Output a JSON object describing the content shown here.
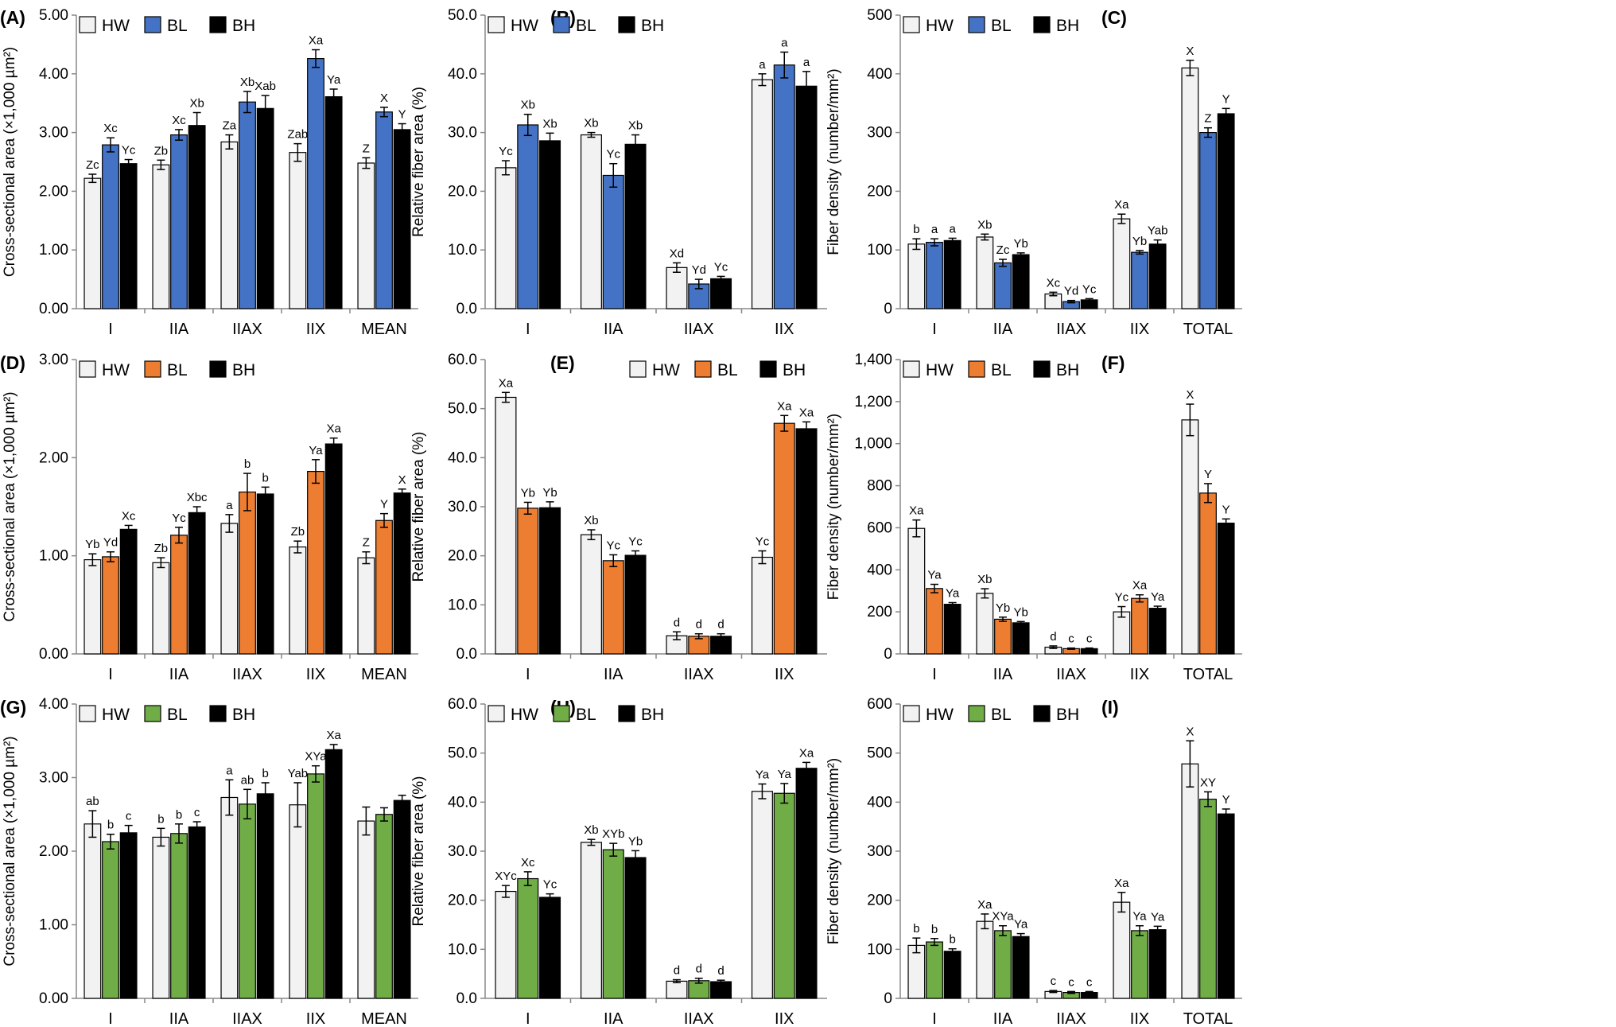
{
  "legend_labels": [
    "HW",
    "BL",
    "BH"
  ],
  "colors": {
    "hw": "#f2f2f2",
    "bh": "#000000",
    "blue": "#4472c4",
    "orange": "#ed7d31",
    "green": "#70ad47",
    "outline": "#000000"
  },
  "chart_data": [
    {
      "type": "bar",
      "panel": "(A)",
      "ylabel": "Cross-sectional area (×1,000 µm²)",
      "categories": [
        "I",
        "IIA",
        "IIAX",
        "IIX",
        "MEAN"
      ],
      "ylim": [
        0,
        5
      ],
      "yticks": [
        "0.00",
        "1.00",
        "2.00",
        "3.00",
        "4.00",
        "5.00"
      ],
      "bl_color": "blue",
      "legend": "top-left",
      "series": [
        {
          "name": "HW",
          "values": [
            2.22,
            2.45,
            2.84,
            2.66,
            2.48
          ],
          "errors": [
            0.07,
            0.08,
            0.12,
            0.15,
            0.09
          ],
          "labels": [
            "Zc",
            "Zb",
            "Za",
            "Zab",
            "Z"
          ]
        },
        {
          "name": "BL",
          "values": [
            2.79,
            2.96,
            3.52,
            4.26,
            3.35
          ],
          "errors": [
            0.12,
            0.09,
            0.18,
            0.15,
            0.08
          ],
          "labels": [
            "Xc",
            "Xc",
            "Xb",
            "Xa",
            "X"
          ]
        },
        {
          "name": "BH",
          "values": [
            2.47,
            3.12,
            3.41,
            3.61,
            3.05
          ],
          "errors": [
            0.07,
            0.22,
            0.22,
            0.13,
            0.1
          ],
          "labels": [
            "Yc",
            "Xb",
            "Xab",
            "Ya",
            "Y"
          ]
        }
      ]
    },
    {
      "type": "bar",
      "panel": "(B)",
      "ylabel": "Relative fiber area (%)",
      "categories": [
        "I",
        "IIA",
        "IIAX",
        "IIX"
      ],
      "ylim": [
        0,
        50
      ],
      "yticks": [
        "0.0",
        "10.0",
        "20.0",
        "30.0",
        "40.0",
        "50.0"
      ],
      "bl_color": "blue",
      "legend": "top-left",
      "series": [
        {
          "name": "HW",
          "values": [
            24.0,
            29.6,
            7.0,
            39.0
          ],
          "errors": [
            1.2,
            0.4,
            0.8,
            1.0
          ],
          "labels": [
            "Yc",
            "Xb",
            "Xd",
            "a"
          ]
        },
        {
          "name": "BL",
          "values": [
            31.3,
            22.7,
            4.2,
            41.5
          ],
          "errors": [
            1.8,
            2.0,
            0.8,
            2.2
          ],
          "labels": [
            "Xb",
            "Yc",
            "Yd",
            "a"
          ]
        },
        {
          "name": "BH",
          "values": [
            28.6,
            28.0,
            5.1,
            37.9
          ],
          "errors": [
            1.3,
            1.6,
            0.4,
            2.5
          ],
          "labels": [
            "Xb",
            "Xb",
            "Yc",
            "a"
          ]
        }
      ]
    },
    {
      "type": "bar",
      "panel": "(C)",
      "ylabel": "Fiber density (number/mm²)",
      "categories": [
        "I",
        "IIA",
        "IIAX",
        "IIX",
        "TOTAL"
      ],
      "ylim": [
        0,
        500
      ],
      "yticks": [
        "0",
        "100",
        "200",
        "300",
        "400",
        "500"
      ],
      "bl_color": "blue",
      "legend": "top-left",
      "series": [
        {
          "name": "HW",
          "values": [
            110,
            122,
            25,
            153,
            410
          ],
          "errors": [
            9,
            5,
            3,
            8,
            13
          ],
          "labels": [
            "b",
            "Xb",
            "Xc",
            "Xa",
            "X"
          ]
        },
        {
          "name": "BL",
          "values": [
            113,
            78,
            12,
            96,
            300
          ],
          "errors": [
            6,
            6,
            2,
            3,
            8
          ],
          "labels": [
            "a",
            "Zc",
            "Yd",
            "Yb",
            "Z"
          ]
        },
        {
          "name": "BH",
          "values": [
            116,
            92,
            15,
            110,
            332
          ],
          "errors": [
            4,
            3,
            2,
            7,
            9
          ],
          "labels": [
            "a",
            "Yb",
            "Yc",
            "Yab",
            "Y"
          ]
        }
      ]
    },
    {
      "type": "bar",
      "panel": "(D)",
      "ylabel": "Cross-sectional area (×1,000 µm²)",
      "categories": [
        "I",
        "IIA",
        "IIAX",
        "IIX",
        "MEAN"
      ],
      "ylim": [
        0,
        3
      ],
      "yticks": [
        "0.00",
        "1.00",
        "2.00",
        "3.00"
      ],
      "bl_color": "orange",
      "legend": "top-left",
      "series": [
        {
          "name": "HW",
          "values": [
            0.96,
            0.93,
            1.33,
            1.09,
            0.98
          ],
          "errors": [
            0.06,
            0.05,
            0.09,
            0.06,
            0.06
          ],
          "labels": [
            "Yb",
            "Zb",
            "a",
            "Zb",
            "Z"
          ]
        },
        {
          "name": "BL",
          "values": [
            0.99,
            1.21,
            1.65,
            1.86,
            1.36
          ],
          "errors": [
            0.05,
            0.08,
            0.19,
            0.12,
            0.07
          ],
          "labels": [
            "Yd",
            "Yc",
            "b",
            "Ya",
            "Y"
          ]
        },
        {
          "name": "BH",
          "values": [
            1.27,
            1.44,
            1.63,
            2.14,
            1.64
          ],
          "errors": [
            0.04,
            0.06,
            0.07,
            0.06,
            0.04
          ],
          "labels": [
            "Xc",
            "Xbc",
            "b",
            "Xa",
            "X"
          ]
        }
      ]
    },
    {
      "type": "bar",
      "panel": "(E)",
      "ylabel": "Relative fiber area (%)",
      "categories": [
        "I",
        "IIA",
        "IIAX",
        "IIX"
      ],
      "ylim": [
        0,
        60
      ],
      "yticks": [
        "0.0",
        "10.0",
        "20.0",
        "30.0",
        "40.0",
        "50.0",
        "60.0"
      ],
      "bl_color": "orange",
      "legend": "top-right",
      "series": [
        {
          "name": "HW",
          "values": [
            52.3,
            24.3,
            3.7,
            19.7
          ],
          "errors": [
            1.0,
            1.0,
            0.8,
            1.3
          ],
          "labels": [
            "Xa",
            "Xb",
            "d",
            "Yc"
          ]
        },
        {
          "name": "BL",
          "values": [
            29.7,
            19.0,
            3.6,
            47.0
          ],
          "errors": [
            1.2,
            1.2,
            0.5,
            1.6
          ],
          "labels": [
            "Yb",
            "Yc",
            "d",
            "Xa"
          ]
        },
        {
          "name": "BH",
          "values": [
            29.8,
            20.1,
            3.6,
            45.9
          ],
          "errors": [
            1.2,
            0.9,
            0.5,
            1.4
          ],
          "labels": [
            "Yb",
            "Yc",
            "d",
            "Xa"
          ]
        }
      ]
    },
    {
      "type": "bar",
      "panel": "(F)",
      "ylabel": "Fiber density (number/mm²)",
      "categories": [
        "I",
        "IIA",
        "IIAX",
        "IIX",
        "TOTAL"
      ],
      "ylim": [
        0,
        1400
      ],
      "yticks": [
        "0",
        "200",
        "400",
        "600",
        "800",
        "1,000",
        "1,200",
        "1,400"
      ],
      "bl_color": "orange",
      "legend": "top-left",
      "series": [
        {
          "name": "HW",
          "values": [
            597,
            288,
            32,
            200,
            1113
          ],
          "errors": [
            40,
            22,
            6,
            25,
            75
          ],
          "labels": [
            "Xa",
            "Xb",
            "d",
            "Yc",
            "X"
          ]
        },
        {
          "name": "BL",
          "values": [
            311,
            165,
            25,
            264,
            765
          ],
          "errors": [
            20,
            10,
            3,
            17,
            45
          ],
          "labels": [
            "Ya",
            "Yb",
            "c",
            "Xa",
            "Y"
          ]
        },
        {
          "name": "BH",
          "values": [
            236,
            148,
            25,
            217,
            622
          ],
          "errors": [
            8,
            6,
            3,
            10,
            20
          ],
          "labels": [
            "Ya",
            "Yb",
            "c",
            "Ya",
            "Y"
          ]
        }
      ]
    },
    {
      "type": "bar",
      "panel": "(G)",
      "ylabel": "Cross-sectional area (×1,000 µm²)",
      "categories": [
        "I",
        "IIA",
        "IIAX",
        "IIX",
        "MEAN"
      ],
      "ylim": [
        0,
        4
      ],
      "yticks": [
        "0.00",
        "1.00",
        "2.00",
        "3.00",
        "4.00"
      ],
      "bl_color": "green",
      "legend": "top-left",
      "series": [
        {
          "name": "HW",
          "values": [
            2.37,
            2.19,
            2.73,
            2.63,
            2.41
          ],
          "errors": [
            0.18,
            0.12,
            0.24,
            0.3,
            0.19
          ],
          "labels": [
            "ab",
            "b",
            "a",
            "Yab",
            ""
          ]
        },
        {
          "name": "BL",
          "values": [
            2.13,
            2.24,
            2.64,
            3.05,
            2.5
          ],
          "errors": [
            0.1,
            0.13,
            0.2,
            0.11,
            0.09
          ],
          "labels": [
            "b",
            "b",
            "ab",
            "XYa",
            ""
          ]
        },
        {
          "name": "BH",
          "values": [
            2.25,
            2.33,
            2.78,
            3.38,
            2.69
          ],
          "errors": [
            0.1,
            0.07,
            0.15,
            0.07,
            0.07
          ],
          "labels": [
            "c",
            "c",
            "b",
            "Xa",
            ""
          ]
        }
      ]
    },
    {
      "type": "bar",
      "panel": "(H)",
      "ylabel": "Relative fiber area (%)",
      "categories": [
        "I",
        "IIA",
        "IIAX",
        "IIX"
      ],
      "ylim": [
        0,
        60
      ],
      "yticks": [
        "0.0",
        "10.0",
        "20.0",
        "30.0",
        "40.0",
        "50.0",
        "60.0"
      ],
      "bl_color": "green",
      "legend": "top-left",
      "series": [
        {
          "name": "HW",
          "values": [
            21.8,
            31.8,
            3.5,
            42.2
          ],
          "errors": [
            1.2,
            0.6,
            0.3,
            1.5
          ],
          "labels": [
            "XYc",
            "Xb",
            "d",
            "Ya"
          ]
        },
        {
          "name": "BL",
          "values": [
            24.4,
            30.3,
            3.6,
            41.8
          ],
          "errors": [
            1.4,
            1.3,
            0.5,
            2.0
          ],
          "labels": [
            "Xc",
            "XYb",
            "d",
            "Ya"
          ]
        },
        {
          "name": "BH",
          "values": [
            20.6,
            28.7,
            3.4,
            46.9
          ],
          "errors": [
            0.7,
            1.4,
            0.3,
            1.2
          ],
          "labels": [
            "Yc",
            "Yb",
            "d",
            "Xa"
          ]
        }
      ]
    },
    {
      "type": "bar",
      "panel": "(I)",
      "ylabel": "Fiber density (number/mm²)",
      "categories": [
        "I",
        "IIA",
        "IIAX",
        "IIX",
        "TOTAL"
      ],
      "ylim": [
        0,
        600
      ],
      "yticks": [
        "0",
        "100",
        "200",
        "300",
        "400",
        "500",
        "600"
      ],
      "bl_color": "green",
      "legend": "top-left",
      "series": [
        {
          "name": "HW",
          "values": [
            108,
            157,
            14,
            196,
            478
          ],
          "errors": [
            15,
            15,
            2,
            20,
            47
          ],
          "labels": [
            "b",
            "Xa",
            "c",
            "Xa",
            "X"
          ]
        },
        {
          "name": "BL",
          "values": [
            115,
            138,
            12,
            138,
            406
          ],
          "errors": [
            7,
            10,
            2,
            10,
            15
          ],
          "labels": [
            "b",
            "XYa",
            "c",
            "Ya",
            "XY"
          ]
        },
        {
          "name": "BH",
          "values": [
            96,
            126,
            12,
            140,
            376
          ],
          "errors": [
            5,
            6,
            2,
            7,
            10
          ],
          "labels": [
            "b",
            "Ya",
            "c",
            "Ya",
            "Y"
          ]
        }
      ]
    }
  ]
}
